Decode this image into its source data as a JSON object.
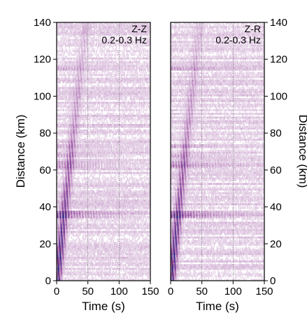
{
  "chart_data": [
    {
      "type": "heatmap",
      "title": "Z-Z",
      "subtitle": "0.2-0.3 Hz",
      "xlabel": "Time (s)",
      "ylabel": "Distance (km)",
      "xlim": [
        0,
        150
      ],
      "ylim": [
        0,
        140
      ],
      "xticks": [
        0,
        50,
        100,
        150
      ],
      "yticks": [
        0,
        20,
        40,
        60,
        80,
        100,
        120,
        140
      ],
      "grid_x": [
        50,
        100
      ],
      "colormap": [
        "#ffffff",
        "#9a4fa0",
        "#2d2d8a",
        "#c0102e"
      ],
      "bands": [
        {
          "distance": 35,
          "intensity": 0.85
        },
        {
          "distance": 37,
          "intensity": 0.7
        },
        {
          "distance": 62,
          "intensity": 0.45
        },
        {
          "distance": 64,
          "intensity": 0.4
        },
        {
          "distance": 68,
          "intensity": 0.35
        },
        {
          "distance": 73,
          "intensity": 0.3
        },
        {
          "distance": 115,
          "intensity": 0.3
        }
      ]
    },
    {
      "type": "heatmap",
      "title": "Z-R",
      "subtitle": "0.2-0.3 Hz",
      "xlabel": "Time (s)",
      "ylabel": "Distance (km)",
      "xlim": [
        0,
        150
      ],
      "ylim": [
        0,
        140
      ],
      "xticks": [
        0,
        50,
        100,
        150
      ],
      "yticks": [
        0,
        20,
        40,
        60,
        80,
        100,
        120,
        140
      ],
      "grid_x": [
        50,
        100
      ],
      "colormap": [
        "#ffffff",
        "#9a4fa0",
        "#2d2d8a",
        "#c0102e"
      ],
      "bands": [
        {
          "distance": 35,
          "intensity": 0.85
        },
        {
          "distance": 37,
          "intensity": 0.7
        },
        {
          "distance": 62,
          "intensity": 0.45
        },
        {
          "distance": 64,
          "intensity": 0.4
        },
        {
          "distance": 68,
          "intensity": 0.35
        },
        {
          "distance": 73,
          "intensity": 0.3
        },
        {
          "distance": 115,
          "intensity": 0.3
        }
      ]
    }
  ]
}
